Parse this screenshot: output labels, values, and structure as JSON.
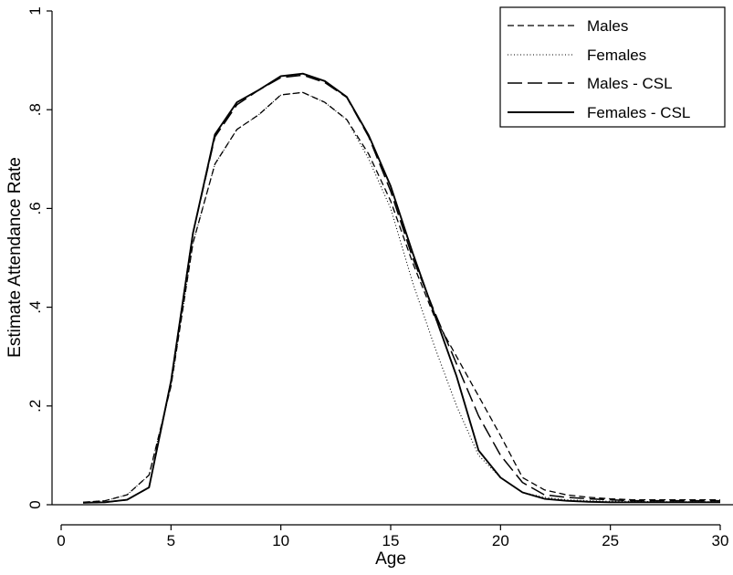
{
  "chart_data": {
    "type": "line",
    "title": "",
    "xlabel": "Age",
    "ylabel": "Estimate Attendance Rate",
    "xlim": [
      0,
      30
    ],
    "ylim": [
      0,
      1
    ],
    "x_ticks": [
      0,
      5,
      10,
      15,
      20,
      25,
      30
    ],
    "y_ticks": [
      0,
      0.2,
      0.4,
      0.6,
      0.8,
      1
    ],
    "y_tick_labels": [
      "0",
      ".2",
      ".4",
      ".6",
      ".8",
      "1"
    ],
    "grid": false,
    "legend_position": "top-right",
    "x": [
      1,
      2,
      3,
      4,
      5,
      6,
      7,
      8,
      9,
      10,
      11,
      12,
      13,
      14,
      15,
      16,
      17,
      18,
      19,
      20,
      21,
      22,
      23,
      24,
      25,
      26,
      27,
      28,
      29,
      30
    ],
    "series": [
      {
        "name": "Males",
        "dash": "dashed",
        "values": [
          0.005,
          0.008,
          0.02,
          0.06,
          0.24,
          0.53,
          0.69,
          0.76,
          0.79,
          0.83,
          0.835,
          0.815,
          0.78,
          0.71,
          0.615,
          0.49,
          0.38,
          0.3,
          0.22,
          0.14,
          0.055,
          0.03,
          0.02,
          0.015,
          0.012,
          0.01,
          0.01,
          0.01,
          0.01,
          0.01
        ]
      },
      {
        "name": "Females",
        "dash": "dotted",
        "values": [
          0.005,
          0.008,
          0.02,
          0.06,
          0.24,
          0.53,
          0.69,
          0.76,
          0.79,
          0.83,
          0.835,
          0.815,
          0.78,
          0.7,
          0.6,
          0.45,
          0.32,
          0.2,
          0.1,
          0.055,
          0.025,
          0.015,
          0.01,
          0.008,
          0.007,
          0.007,
          0.006,
          0.006,
          0.006,
          0.006
        ]
      },
      {
        "name": "Males - CSL",
        "dash": "longdash",
        "values": [
          0.004,
          0.005,
          0.01,
          0.035,
          0.25,
          0.55,
          0.745,
          0.81,
          0.84,
          0.865,
          0.87,
          0.855,
          0.825,
          0.745,
          0.635,
          0.5,
          0.39,
          0.285,
          0.18,
          0.1,
          0.045,
          0.02,
          0.015,
          0.012,
          0.01,
          0.008,
          0.008,
          0.008,
          0.008,
          0.008
        ]
      },
      {
        "name": "Females - CSL",
        "dash": "solid",
        "values": [
          0.004,
          0.005,
          0.01,
          0.035,
          0.25,
          0.55,
          0.75,
          0.815,
          0.84,
          0.868,
          0.873,
          0.858,
          0.826,
          0.748,
          0.645,
          0.51,
          0.385,
          0.26,
          0.11,
          0.055,
          0.025,
          0.012,
          0.008,
          0.006,
          0.005,
          0.005,
          0.005,
          0.005,
          0.005,
          0.005
        ]
      }
    ]
  }
}
